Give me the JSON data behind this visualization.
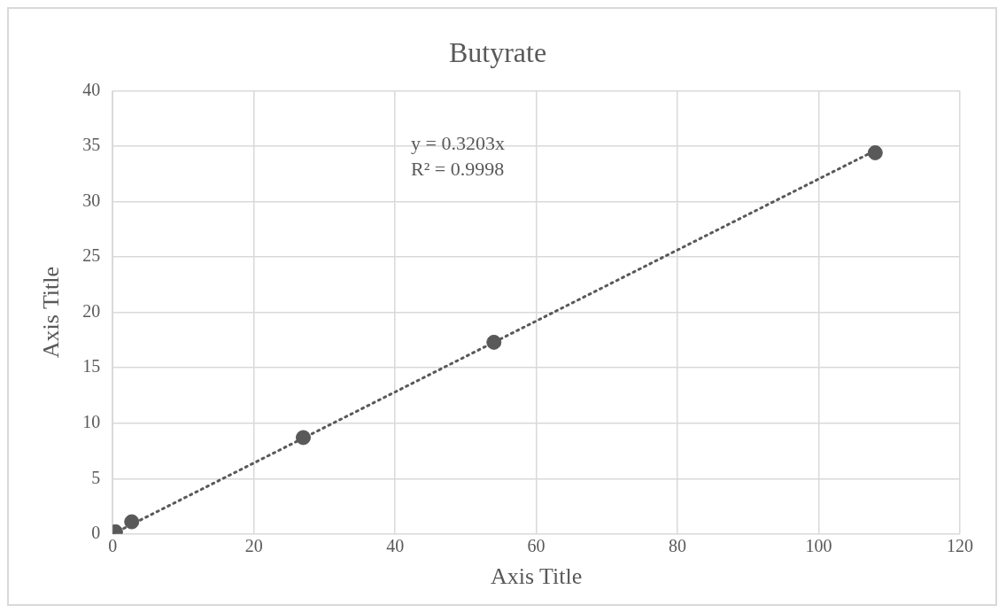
{
  "chart_data": {
    "type": "scatter",
    "title": "Butyrate",
    "xlabel": "Axis Title",
    "ylabel": "Axis Title",
    "x": [
      0.4,
      2.7,
      27,
      54,
      108
    ],
    "series": [
      {
        "type": "scatter",
        "color": "#595959",
        "values": [
          0.2,
          1.1,
          8.7,
          17.3,
          34.4
        ]
      },
      {
        "type": "line",
        "color": "#595959",
        "x": [
          0,
          108
        ],
        "values": [
          0,
          34.6
        ],
        "line_style": "dotted",
        "marker": "none"
      }
    ],
    "marker": "circle",
    "xlim": [
      0,
      120
    ],
    "xticks": [
      0,
      20,
      40,
      60,
      80,
      100,
      120
    ],
    "ylim": [
      0,
      40
    ],
    "yticks": [
      0,
      5,
      10,
      15,
      20,
      25,
      30,
      35,
      40
    ],
    "grid": true,
    "annotations": [
      "y = 0.3203x",
      "R² = 0.9998"
    ]
  }
}
